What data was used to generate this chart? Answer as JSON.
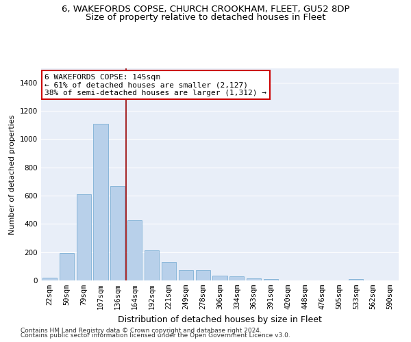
{
  "title1": "6, WAKEFORDS COPSE, CHURCH CROOKHAM, FLEET, GU52 8DP",
  "title2": "Size of property relative to detached houses in Fleet",
  "xlabel": "Distribution of detached houses by size in Fleet",
  "ylabel": "Number of detached properties",
  "categories": [
    "22sqm",
    "50sqm",
    "79sqm",
    "107sqm",
    "136sqm",
    "164sqm",
    "192sqm",
    "221sqm",
    "249sqm",
    "278sqm",
    "306sqm",
    "334sqm",
    "363sqm",
    "391sqm",
    "420sqm",
    "448sqm",
    "476sqm",
    "505sqm",
    "533sqm",
    "562sqm",
    "590sqm"
  ],
  "values": [
    20,
    195,
    610,
    1110,
    670,
    425,
    215,
    130,
    75,
    75,
    35,
    30,
    15,
    12,
    0,
    0,
    0,
    0,
    10,
    0,
    0
  ],
  "bar_color": "#b8d0ea",
  "bar_edge_color": "#6ea6d0",
  "bg_color": "#e8eef8",
  "grid_color": "#ffffff",
  "vline_x": 4.5,
  "vline_color": "#990000",
  "annotation_text": "6 WAKEFORDS COPSE: 145sqm\n← 61% of detached houses are smaller (2,127)\n38% of semi-detached houses are larger (1,312) →",
  "annotation_box_color": "#ffffff",
  "annotation_box_edge": "#cc0000",
  "footer1": "Contains HM Land Registry data © Crown copyright and database right 2024.",
  "footer2": "Contains public sector information licensed under the Open Government Licence v3.0.",
  "ylim": [
    0,
    1500
  ],
  "yticks": [
    0,
    200,
    400,
    600,
    800,
    1000,
    1200,
    1400
  ],
  "title1_fontsize": 9.5,
  "title2_fontsize": 9.5,
  "xlabel_fontsize": 9,
  "ylabel_fontsize": 8,
  "tick_fontsize": 7.5,
  "footer_fontsize": 6.5,
  "annot_fontsize": 8
}
